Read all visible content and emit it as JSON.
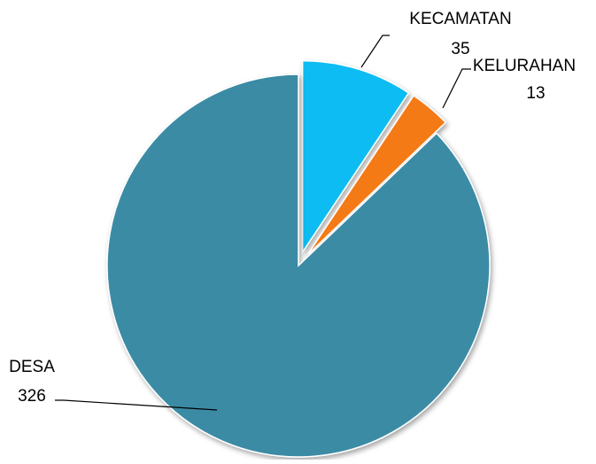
{
  "chart_data": {
    "type": "pie",
    "categories": [
      "KECAMATAN",
      "KELURAHAN",
      "DESA"
    ],
    "values": [
      35,
      13,
      326
    ],
    "colors": [
      "#0cbcf2",
      "#f47a12",
      "#3b8ba5"
    ]
  }
}
